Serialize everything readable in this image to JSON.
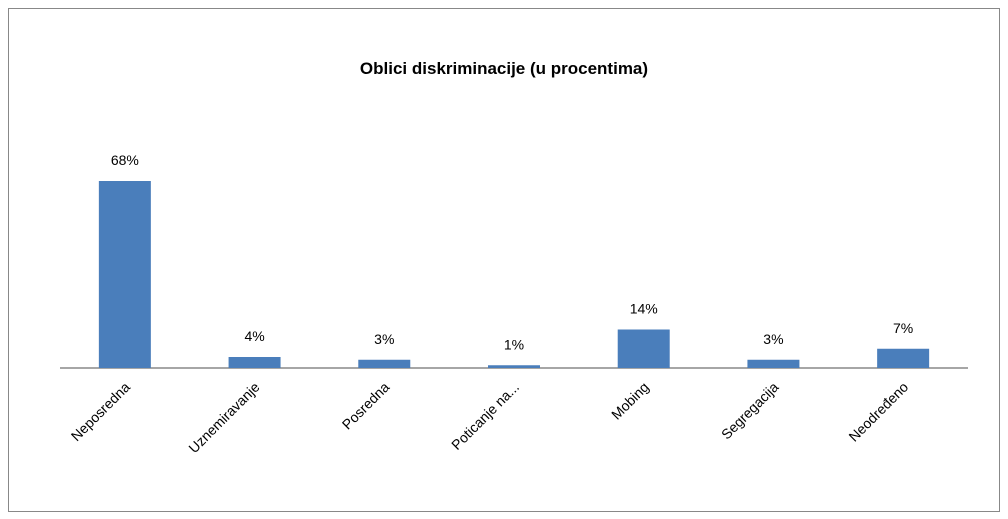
{
  "chart_data": {
    "type": "bar",
    "title": "Oblici diskriminacije (u procentima)",
    "categories": [
      "Neposredna",
      "Uznemiravanje",
      "Posredna",
      "Poticanje na...",
      "Mobing",
      "Segregacija",
      "Neodređeno"
    ],
    "values": [
      68,
      4,
      3,
      1,
      14,
      3,
      7
    ],
    "value_labels": [
      "68%",
      "4%",
      "3%",
      "1%",
      "14%",
      "3%",
      "7%"
    ],
    "color": "#4a7ebb"
  }
}
